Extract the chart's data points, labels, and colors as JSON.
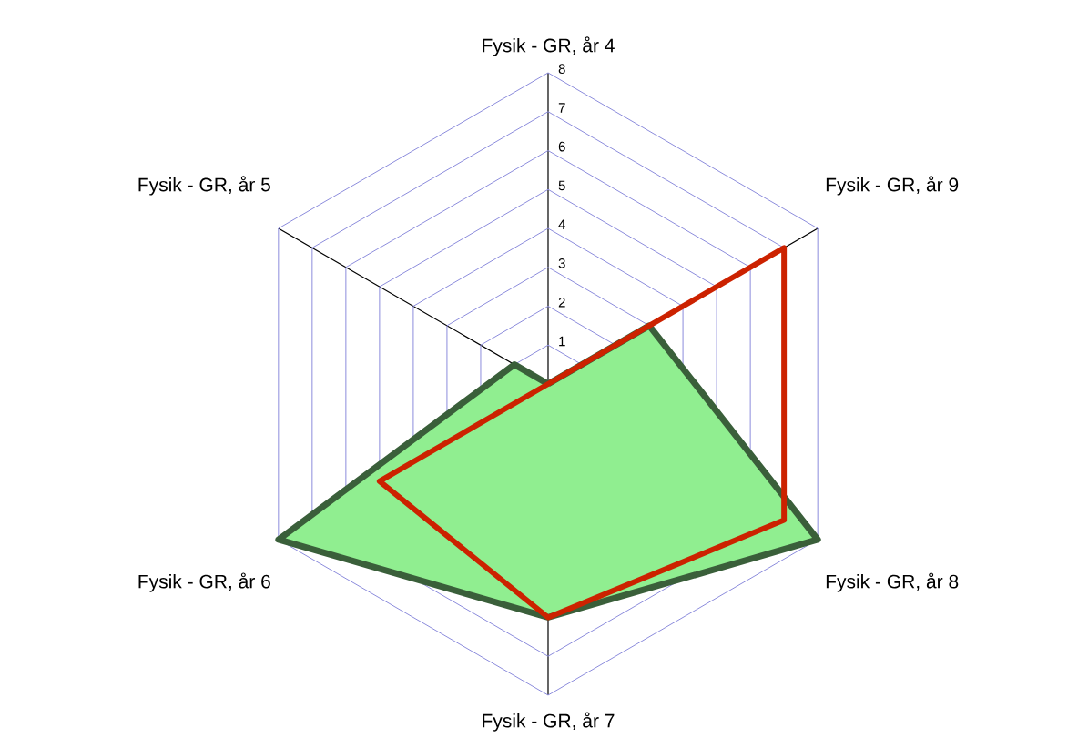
{
  "chart_data": {
    "type": "radar",
    "categories": [
      "Fysik - GR, år 4",
      "Fysik - GR, år 9",
      "Fysik - GR, år 8",
      "Fysik - GR, år 7",
      "Fysik - GR, år 6",
      "Fysik - GR, år 5"
    ],
    "ylim": [
      0,
      8
    ],
    "yticks": [
      1,
      2,
      3,
      4,
      5,
      6,
      7,
      8
    ],
    "grid": true,
    "series": [
      {
        "type": "radar",
        "color": "#90ee90",
        "values": [
          0,
          3,
          8,
          6,
          8,
          1
        ]
      },
      {
        "color": "#cc2200",
        "values": [
          0,
          7,
          7,
          6,
          5,
          0
        ]
      }
    ]
  }
}
